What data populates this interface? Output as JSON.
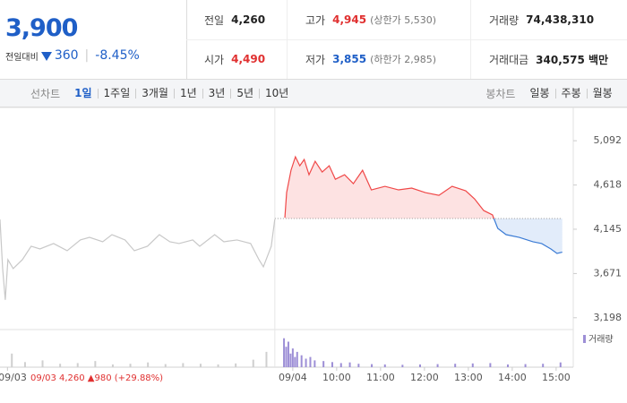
{
  "header": {
    "price": "3,900",
    "change_label": "전일대비",
    "change": "360",
    "change_rate": "-8.45%",
    "stats": [
      [
        {
          "label": "전일",
          "value": "4,260"
        },
        {
          "label": "고가",
          "value": "4,945",
          "note": "(상한가 5,530)"
        },
        {
          "label": "거래량",
          "value": "74,438,310"
        }
      ],
      [
        {
          "label": "시가",
          "value": "4,490"
        },
        {
          "label": "저가",
          "value": "3,855",
          "note": "(하한가 2,985)"
        },
        {
          "label": "거래대금",
          "value": "340,575 백만"
        }
      ]
    ]
  },
  "nav": {
    "line_label": "선차트",
    "line_periods": [
      "1일",
      "1주일",
      "3개월",
      "1년",
      "3년",
      "5년",
      "10년"
    ],
    "selected": 0,
    "candle_label": "봉차트",
    "candle_periods": [
      "일봉",
      "주봉",
      "월봉"
    ]
  },
  "summary": "09/03  4,260 ▲980 (+29.88%)",
  "chart_data": [
    {
      "type": "line",
      "xlim": [
        -0.17,
        12.89
      ],
      "ylim": [
        3100,
        5400
      ],
      "xticks": [
        {
          "value": 0,
          "label": "09/03"
        },
        {
          "value": 6.5,
          "label": "09/04"
        },
        {
          "value": 7.5,
          "label": "10:00"
        },
        {
          "value": 8.5,
          "label": "11:00"
        },
        {
          "value": 9.5,
          "label": "12:00"
        },
        {
          "value": 10.5,
          "label": "13:00"
        },
        {
          "value": 11.5,
          "label": "14:00"
        },
        {
          "value": 12.5,
          "label": "15:00"
        }
      ],
      "yticks": [
        {
          "value": 3198,
          "label": "3,198"
        },
        {
          "value": 3671,
          "label": "3,671"
        },
        {
          "value": 4145,
          "label": "4,145"
        },
        {
          "value": 4618,
          "label": "4,618"
        },
        {
          "value": 5092,
          "label": "5,092"
        }
      ],
      "reference_line": 4260,
      "series": [
        {
          "color": "#c8c8c8",
          "x": [
            -0.17,
            -0.11,
            -0.05,
            0.01,
            0.13,
            0.34,
            0.54,
            0.74,
            1.05,
            1.36,
            1.66,
            1.87,
            2.17,
            2.38,
            2.68,
            2.89,
            3.19,
            3.46,
            3.7,
            3.91,
            4.22,
            4.38,
            4.72,
            4.93,
            5.23,
            5.54,
            5.73,
            5.83,
            6.01,
            6.09
          ],
          "values": [
            4250,
            3724,
            3389,
            3819,
            3724,
            3819,
            3963,
            3934,
            3992,
            3915,
            4030,
            4058,
            4011,
            4087,
            4030,
            3915,
            3963,
            4087,
            4011,
            3992,
            4030,
            3963,
            4087,
            4011,
            4030,
            3992,
            3819,
            3743,
            3963,
            4250
          ]
        },
        {
          "color": "#f04848",
          "color_below": "#3a7bd5",
          "fill": "#fde2e2",
          "fill_below": "#e2ecfa",
          "x": [
            6.32,
            6.36,
            6.46,
            6.56,
            6.66,
            6.76,
            6.87,
            7.01,
            7.17,
            7.33,
            7.47,
            7.68,
            7.88,
            8.09,
            8.29,
            8.6,
            8.91,
            9.21,
            9.52,
            9.83,
            10.13,
            10.44,
            10.64,
            10.85,
            11.05,
            11.17,
            11.36,
            11.66,
            11.97,
            12.17,
            12.38,
            12.52,
            12.64
          ],
          "values": [
            4269,
            4537,
            4776,
            4920,
            4824,
            4891,
            4728,
            4872,
            4757,
            4824,
            4680,
            4728,
            4633,
            4776,
            4566,
            4604,
            4566,
            4585,
            4537,
            4508,
            4604,
            4556,
            4470,
            4345,
            4298,
            4154,
            4087,
            4058,
            4011,
            3992,
            3934,
            3886,
            3900
          ]
        }
      ]
    },
    {
      "type": "bar",
      "legend": "거래량",
      "xlim": [
        -0.17,
        12.89
      ],
      "ylim": [
        0,
        100
      ],
      "series": [
        {
          "color": "#cfcfcf",
          "x": [
            0.1,
            0.4,
            0.8,
            1.2,
            1.6,
            2.0,
            2.4,
            2.8,
            3.2,
            3.6,
            4.0,
            4.4,
            4.8,
            5.2,
            5.6,
            5.9
          ],
          "values": [
            40,
            15,
            20,
            10,
            12,
            18,
            8,
            10,
            14,
            9,
            12,
            10,
            8,
            11,
            22,
            45
          ]
        },
        {
          "color": "#9d8fd6",
          "x": [
            6.3,
            6.35,
            6.4,
            6.45,
            6.5,
            6.55,
            6.6,
            6.7,
            6.8,
            6.9,
            7.0,
            7.2,
            7.4,
            7.6,
            7.8,
            8.0,
            8.3,
            8.6,
            9.0,
            9.4,
            9.8,
            10.2,
            10.6,
            11.0,
            11.4,
            11.8,
            12.2,
            12.6
          ],
          "values": [
            85,
            60,
            75,
            40,
            55,
            30,
            45,
            35,
            25,
            30,
            20,
            18,
            15,
            12,
            14,
            10,
            9,
            8,
            7,
            8,
            9,
            10,
            11,
            12,
            8,
            9,
            10,
            14
          ]
        }
      ]
    }
  ]
}
